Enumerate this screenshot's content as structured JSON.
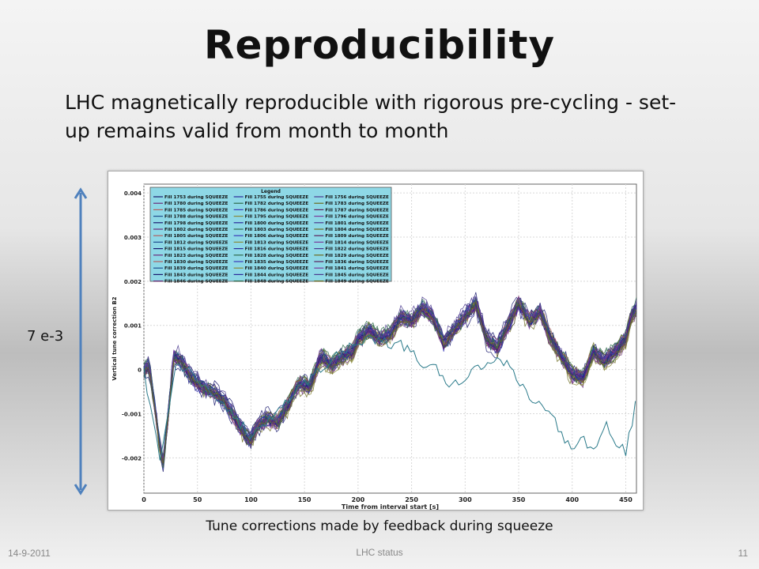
{
  "slide": {
    "title": "Reproducibility",
    "subtitle": "LHC magnetically reproducible with rigorous pre-cycling - set-up remains valid from month to month",
    "arrow_label": "7 e-3",
    "caption": "Tune corrections made by feedback during squeeze",
    "footer_date": "14-9-2011",
    "footer_center": "LHC status",
    "page_number": "11"
  },
  "colors": {
    "arrow": "#4f81bd",
    "legend_bg": "#8ed8e6",
    "plot_bg": "#ffffff"
  },
  "chart_data": {
    "type": "line",
    "xlabel": "Time from interval start [s]",
    "ylabel": "Vertical tune correction B2",
    "xlim": [
      0,
      460
    ],
    "ylim": [
      -0.0028,
      0.0042
    ],
    "x_ticks": [
      "0",
      "50",
      "100",
      "150",
      "200",
      "250",
      "300",
      "350",
      "400",
      "450"
    ],
    "x_tick_values": [
      0,
      50,
      100,
      150,
      200,
      250,
      300,
      350,
      400,
      450
    ],
    "y_ticks": [
      "0.004",
      "0.003",
      "0.002",
      "0.001",
      "0",
      "-0.001",
      "-0.002"
    ],
    "y_tick_values": [
      0.004,
      0.003,
      0.002,
      0.001,
      0,
      -0.001,
      -0.002
    ],
    "grid": true,
    "legend_title": "Legend",
    "legend_position": "top-left",
    "legend": [
      "Fill 1753 during SQUEEZE",
      "Fill 1755 during SQUEEZE",
      "Fill 1756 during SQUEEZE",
      "Fill 1780 during SQUEEZE",
      "Fill 1782 during SQUEEZE",
      "Fill 1783 during SQUEEZE",
      "Fill 1785 during SQUEEZE",
      "Fill 1786 during SQUEEZE",
      "Fill 1787 during SQUEEZE",
      "Fill 1788 during SQUEEZE",
      "Fill 1795 during SQUEEZE",
      "Fill 1796 during SQUEEZE",
      "Fill 1798 during SQUEEZE",
      "Fill 1800 during SQUEEZE",
      "Fill 1801 during SQUEEZE",
      "Fill 1802 during SQUEEZE",
      "Fill 1803 during SQUEEZE",
      "Fill 1804 during SQUEEZE",
      "Fill 1805 during SQUEEZE",
      "Fill 1806 during SQUEEZE",
      "Fill 1809 during SQUEEZE",
      "Fill 1812 during SQUEEZE",
      "Fill 1813 during SQUEEZE",
      "Fill 1814 during SQUEEZE",
      "Fill 1815 during SQUEEZE",
      "Fill 1816 during SQUEEZE",
      "Fill 1822 during SQUEEZE",
      "Fill 1823 during SQUEEZE",
      "Fill 1828 during SQUEEZE",
      "Fill 1829 during SQUEEZE",
      "Fill 1830 during SQUEEZE",
      "Fill 1835 during SQUEEZE",
      "Fill 1836 during SQUEEZE",
      "Fill 1839 during SQUEEZE",
      "Fill 1840 during SQUEEZE",
      "Fill 1841 during SQUEEZE",
      "Fill 1843 during SQUEEZE",
      "Fill 1844 during SQUEEZE",
      "Fill 1845 during SQUEEZE",
      "Fill 1846 during SQUEEZE",
      "Fill 1848 during SQUEEZE",
      "Fill 1849 during SQUEEZE"
    ],
    "series_colors": [
      "#1a1a6e",
      "#2b2b9c",
      "#4b3a8f",
      "#6a2b7a",
      "#2e6a4a",
      "#6b6b1f",
      "#b06060",
      "#3a3ab8",
      "#5a1f5a",
      "#1f4f8f",
      "#8a8a3a",
      "#7a3a9a"
    ],
    "mean_curve": {
      "x": [
        0,
        5,
        10,
        15,
        18,
        22,
        28,
        35,
        45,
        55,
        65,
        75,
        85,
        95,
        100,
        105,
        115,
        125,
        135,
        145,
        155,
        165,
        175,
        185,
        195,
        200,
        210,
        220,
        230,
        240,
        250,
        260,
        270,
        280,
        290,
        300,
        310,
        320,
        330,
        340,
        350,
        360,
        370,
        380,
        390,
        400,
        410,
        420,
        430,
        440,
        450,
        455,
        460
      ],
      "y": [
        0.0,
        0.0001,
        -0.0008,
        -0.0018,
        -0.0021,
        -0.0012,
        0.0003,
        0.0002,
        -0.0002,
        -0.0004,
        -0.0005,
        -0.0007,
        -0.0011,
        -0.0015,
        -0.0016,
        -0.0013,
        -0.0011,
        -0.0012,
        -0.0008,
        -0.0003,
        -0.0004,
        0.0003,
        0.0001,
        0.0003,
        0.0004,
        0.0007,
        0.0009,
        0.0007,
        0.0008,
        0.0012,
        0.0011,
        0.0014,
        0.0012,
        0.0006,
        0.0009,
        0.0012,
        0.0015,
        0.0007,
        0.0005,
        0.001,
        0.0015,
        0.0011,
        0.0013,
        0.0007,
        0.0003,
        -0.0001,
        -0.0002,
        0.0004,
        0.0002,
        0.0004,
        0.0007,
        0.0012,
        0.0014
      ]
    },
    "spread": 0.0004,
    "outlier_series": {
      "x": [
        0,
        15,
        30,
        60,
        100,
        150,
        200,
        250,
        260,
        270,
        285,
        300,
        320,
        340,
        360,
        380,
        390,
        400,
        410,
        420,
        430,
        440,
        450,
        460
      ],
      "y": [
        0.0,
        -0.0021,
        0.0002,
        -0.0004,
        -0.0015,
        -0.0003,
        0.0007,
        0.0005,
        -0.0001,
        0.0001,
        -0.0004,
        -0.0002,
        0.0002,
        0.0001,
        -0.0006,
        -0.001,
        -0.0015,
        -0.0018,
        -0.0016,
        -0.0019,
        -0.0012,
        -0.0016,
        -0.0019,
        -0.0007
      ]
    }
  }
}
